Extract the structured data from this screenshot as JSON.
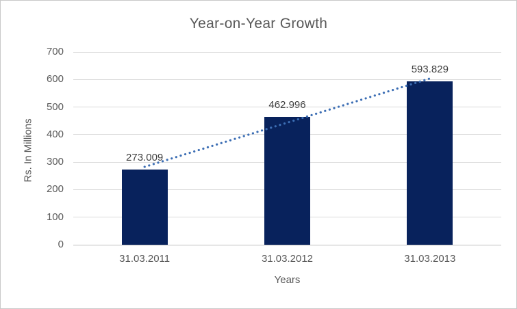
{
  "chart_data": {
    "type": "bar",
    "title": "Year-on-Year Growth",
    "categories": [
      "31.03.2011",
      "31.03.2012",
      "31.03.2013"
    ],
    "values": [
      273.009,
      462.996,
      593.829
    ],
    "data_labels": [
      "273.009",
      "462.996",
      "593.829"
    ],
    "xlabel": "Years",
    "ylabel": "Rs. In Millions",
    "ylim": [
      0,
      700
    ],
    "ytick_interval": 100,
    "ytick_labels": [
      "0",
      "100",
      "200",
      "300",
      "400",
      "500",
      "600",
      "700"
    ],
    "grid": true,
    "legend": "none",
    "trendline": {
      "type": "linear",
      "style": "dotted"
    },
    "colors": {
      "bar": "#08225c",
      "trendline": "#3c6eb4",
      "gridline": "#d9d9d9",
      "axis_line": "#bfbfbf",
      "text": "#595959",
      "data_label_text": "#404040",
      "border": "#c9c9c9",
      "background": "#ffffff"
    }
  }
}
